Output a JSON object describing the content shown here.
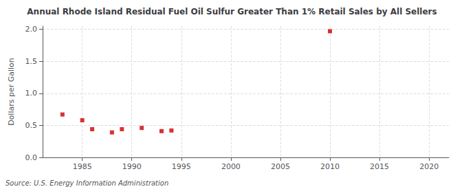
{
  "chart_data": {
    "type": "scatter",
    "title": "Annual Rhode Island Residual Fuel Oil Sulfur Greater Than 1% Retail Sales by All Sellers",
    "ylabel": "Dollars per Gallon",
    "annotation": "Source: U.S. Energy Information Administration",
    "x": [
      1983,
      1985,
      1986,
      1988,
      1989,
      1991,
      1993,
      1994,
      2010
    ],
    "values": [
      0.67,
      0.58,
      0.44,
      0.39,
      0.44,
      0.46,
      0.41,
      0.42,
      1.97
    ],
    "xlim": [
      1981,
      2022
    ],
    "ylim": [
      0.0,
      2.05
    ],
    "xticks": [
      1985,
      1990,
      1995,
      2000,
      2005,
      2010,
      2015,
      2020
    ],
    "yticks": [
      {
        "value": 0.0,
        "label": "0.0"
      },
      0.5,
      {
        "value": 1.0,
        "label": "1.0"
      },
      1.5,
      {
        "value": 2.0,
        "label": "2.0"
      }
    ],
    "color": "#cc0000",
    "marker": "square",
    "grid": true
  }
}
